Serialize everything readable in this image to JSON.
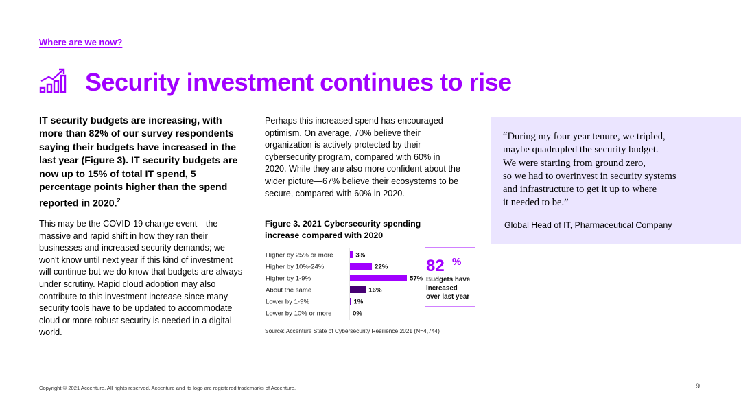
{
  "breadcrumb": "Where are we now?",
  "title": "Security investment continues to rise",
  "lead": {
    "text": "IT security budgets are increasing, with more than 82% of our survey respondents saying their budgets have increased in the last year (Figure 3). IT security budgets are now up to 15% of total IT spend, 5 percentage points higher than the spend reported in 2020.",
    "footnote": "2"
  },
  "body_left": "This may be the COVID-19 change event—the massive and rapid shift in how they ran their businesses and increased security demands; we won't know until next year if this kind of investment will continue but we do know that budgets are always under scrutiny. Rapid cloud adoption may also contribute to this investment increase since many security tools have to be updated to accommodate cloud or more robust security is needed in a digital world.",
  "body_middle": "Perhaps this increased spend has encouraged optimism. On average, 70% believe their organization is actively protected by their cybersecurity program, compared with 60% in 2020. While they are also more confident about the wider picture—67% believe their ecosystems to be secure, compared with 60% in 2020.",
  "figure": {
    "title": "Figure 3. 2021 Cybersecurity spending increase compared with 2020",
    "source": "Source: Accenture State of Cybersecurity Resilience 2021 (N=4,744)"
  },
  "chart_data": {
    "type": "bar",
    "orientation": "horizontal",
    "categories": [
      "Higher by 25% or more",
      "Higher by 10%-24%",
      "Higher by 1-9%",
      "About the same",
      "Lower by 1-9%",
      "Lower by 10% or more"
    ],
    "values": [
      3,
      22,
      57,
      16,
      1,
      0
    ],
    "value_labels": [
      "3%",
      "22%",
      "57%",
      "16%",
      "1%",
      "0%"
    ],
    "bar_colors": [
      "#a100ff",
      "#a100ff",
      "#a100ff",
      "#460073",
      "#7500c0",
      "#7500c0"
    ],
    "callout": {
      "value": "82",
      "unit": "%",
      "text": "Budgets have increased over last year"
    }
  },
  "quote": {
    "text": "“During my four year tenure, we tripled,\n maybe quadrupled the security budget.\n We were starting from ground zero,\n so we had to overinvest in security systems\n and infrastructure to get it up to where\n it needed to be.”",
    "attribution": "Global Head of IT, Pharmaceutical Company"
  },
  "footer": {
    "copyright": "Copyright © 2021 Accenture. All rights reserved. Accenture and its logo are registered trademarks of Accenture.",
    "page": "9"
  },
  "colors": {
    "accent": "#a100ff",
    "quote_bg": "#ebe5ff",
    "dark_purple": "#460073"
  },
  "icons": {
    "title_icon": "rising-bar-chart-icon"
  }
}
